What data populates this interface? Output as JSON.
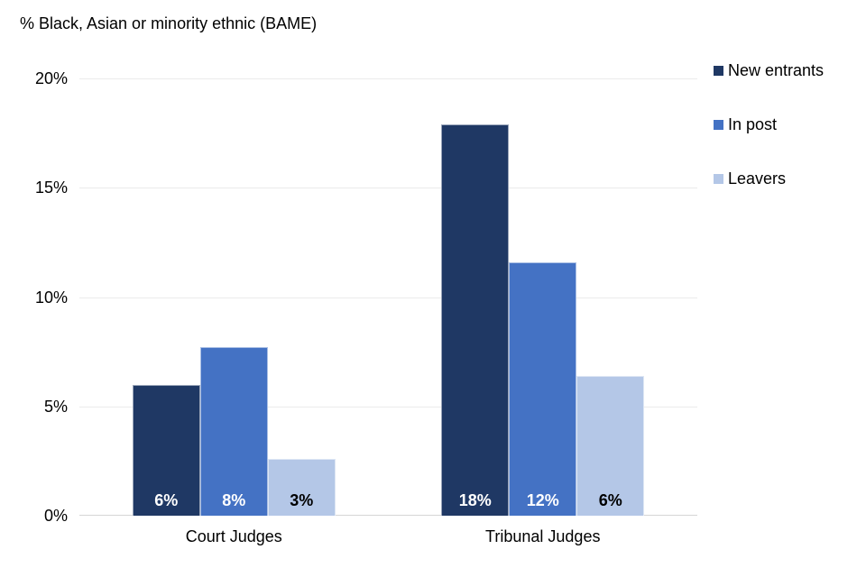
{
  "chart_data": {
    "type": "bar",
    "title": "% Black, Asian or minority ethnic (BAME)",
    "categories": [
      "Court Judges",
      "Tribunal Judges"
    ],
    "series": [
      {
        "name": "New entrants",
        "color": "#1F3864",
        "label_color": "#FFFFFF",
        "values": [
          6,
          18
        ],
        "value_labels": [
          "6%",
          "18%"
        ],
        "bar_heights_pct": [
          6.0,
          17.9
        ]
      },
      {
        "name": "In post",
        "color": "#4472C4",
        "label_color": "#FFFFFF",
        "values": [
          8,
          12
        ],
        "value_labels": [
          "8%",
          "12%"
        ],
        "bar_heights_pct": [
          7.7,
          11.6
        ]
      },
      {
        "name": "Leavers",
        "color": "#B4C7E7",
        "label_color": "#000000",
        "values": [
          3,
          6
        ],
        "value_labels": [
          "3%",
          "6%"
        ],
        "bar_heights_pct": [
          2.6,
          6.4
        ]
      }
    ],
    "ylim": [
      0,
      20
    ],
    "yticks": [
      {
        "value": 0,
        "label": "0%"
      },
      {
        "value": 5,
        "label": "5%"
      },
      {
        "value": 10,
        "label": "10%"
      },
      {
        "value": 15,
        "label": "15%"
      },
      {
        "value": 20,
        "label": "20%"
      }
    ],
    "grid": true,
    "legend_position": "top-right",
    "gridline_color": "#EBEBEB",
    "axis_line_color": "#D6D6D6",
    "text_color": "#000000"
  }
}
